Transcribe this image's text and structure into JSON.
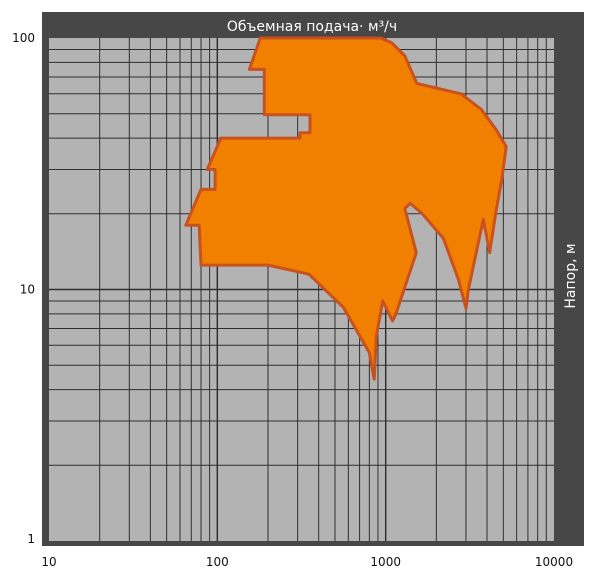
{
  "chart_data": {
    "type": "area",
    "xlabel": "Объемная подача· м³/ч",
    "ylabel": "Напор, м",
    "x_scale": "log",
    "y_scale": "log",
    "xlim": [
      10,
      10000
    ],
    "ylim": [
      1,
      100
    ],
    "x_ticks": [
      {
        "value": 10,
        "label": "10"
      },
      {
        "value": 100,
        "label": "100"
      },
      {
        "value": 1000,
        "label": "1000"
      },
      {
        "value": 10000,
        "label": "10000"
      }
    ],
    "y_ticks": [
      {
        "value": 100,
        "label": "100"
      },
      {
        "value": 10,
        "label": "10"
      },
      {
        "value": 1,
        "label": "1"
      }
    ],
    "grid": true,
    "legend": "none",
    "colors": {
      "plot_background": "#b3b3b3",
      "frame": "#474747",
      "grid": "#2f2f2f",
      "fill": "#f28000",
      "outline": "#c9511d"
    },
    "series": [
      {
        "points": [
          [
            180,
            100
          ],
          [
            930,
            100
          ],
          [
            1080,
            96
          ],
          [
            1300,
            85
          ],
          [
            1530,
            66
          ],
          [
            2800,
            60
          ],
          [
            3700,
            52
          ],
          [
            4550,
            43
          ],
          [
            5200,
            37
          ],
          [
            4920,
            28
          ],
          [
            4500,
            20
          ],
          [
            4150,
            14
          ],
          [
            3800,
            19
          ],
          [
            3100,
            10
          ],
          [
            3000,
            8.4
          ],
          [
            2700,
            11
          ],
          [
            2200,
            16
          ],
          [
            1650,
            20
          ],
          [
            1400,
            22
          ],
          [
            1300,
            21
          ],
          [
            1520,
            14
          ],
          [
            1150,
            8
          ],
          [
            1100,
            7.5
          ],
          [
            960,
            9
          ],
          [
            880,
            6.5
          ],
          [
            855,
            4.4
          ],
          [
            800,
            5.6
          ],
          [
            560,
            8.5
          ],
          [
            350,
            11.5
          ],
          [
            200,
            12.5
          ],
          [
            80,
            12.5
          ],
          [
            78,
            18
          ],
          [
            65,
            18
          ],
          [
            80,
            25
          ],
          [
            97,
            25
          ],
          [
            97,
            30
          ],
          [
            87,
            30
          ],
          [
            105,
            40
          ],
          [
            310,
            40
          ],
          [
            310,
            42
          ],
          [
            355,
            42
          ],
          [
            355,
            49.5
          ],
          [
            190,
            49.5
          ],
          [
            190,
            75
          ],
          [
            155,
            75
          ],
          [
            180,
            100
          ]
        ]
      }
    ]
  }
}
